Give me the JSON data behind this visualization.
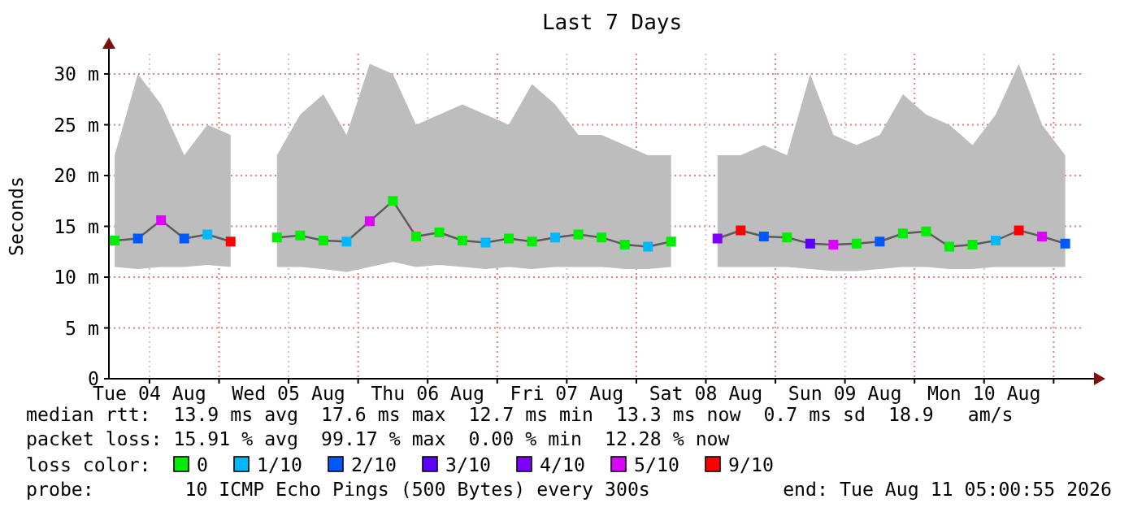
{
  "chart_data": {
    "type": "line",
    "title": "Last 7 Days",
    "ylabel": "Seconds",
    "xlim": [
      "2026-08-04T05:00",
      "2026-08-11T05:00"
    ],
    "xticks": [
      {
        "value": "2026-08-04T12:00",
        "label": "Tue 04 Aug"
      },
      {
        "value": "2026-08-05T00:00",
        "label": null
      },
      {
        "value": "2026-08-05T12:00",
        "label": "Wed 05 Aug"
      },
      {
        "value": "2026-08-06T00:00",
        "label": null
      },
      {
        "value": "2026-08-06T12:00",
        "label": "Thu 06 Aug"
      },
      {
        "value": "2026-08-07T00:00",
        "label": null
      },
      {
        "value": "2026-08-07T12:00",
        "label": "Fri 07 Aug"
      },
      {
        "value": "2026-08-08T00:00",
        "label": null
      },
      {
        "value": "2026-08-08T12:00",
        "label": "Sat 08 Aug"
      },
      {
        "value": "2026-08-09T00:00",
        "label": null
      },
      {
        "value": "2026-08-09T12:00",
        "label": "Sun 09 Aug"
      },
      {
        "value": "2026-08-10T00:00",
        "label": null
      },
      {
        "value": "2026-08-10T12:00",
        "label": "Mon 10 Aug"
      },
      {
        "value": "2026-08-11T00:00",
        "label": null
      }
    ],
    "ylim": [
      0,
      32
    ],
    "yticks": [
      0,
      {
        "value": 5,
        "label": "5 m"
      },
      {
        "value": 10,
        "label": "10 m"
      },
      {
        "value": 15,
        "label": "15 m"
      },
      {
        "value": 20,
        "label": "20 m"
      },
      {
        "value": 25,
        "label": "25 m"
      },
      {
        "value": 30,
        "label": "30 m"
      }
    ],
    "grid": true,
    "legend": "bottom",
    "legend_title": "loss color:",
    "marker": "square",
    "x": [
      "2026-08-04T06:00",
      "2026-08-04T10:00",
      "2026-08-04T14:00",
      "2026-08-04T18:00",
      "2026-08-04T22:00",
      "2026-08-05T02:00",
      "2026-08-05T06:00",
      "2026-08-05T10:00",
      "2026-08-05T14:00",
      "2026-08-05T18:00",
      "2026-08-05T22:00",
      "2026-08-06T02:00",
      "2026-08-06T06:00",
      "2026-08-06T10:00",
      "2026-08-06T14:00",
      "2026-08-06T18:00",
      "2026-08-06T22:00",
      "2026-08-07T02:00",
      "2026-08-07T06:00",
      "2026-08-07T10:00",
      "2026-08-07T14:00",
      "2026-08-07T18:00",
      "2026-08-07T22:00",
      "2026-08-08T02:00",
      "2026-08-08T06:00",
      "2026-08-08T10:00",
      "2026-08-08T14:00",
      "2026-08-08T18:00",
      "2026-08-08T22:00",
      "2026-08-09T02:00",
      "2026-08-09T06:00",
      "2026-08-09T10:00",
      "2026-08-09T14:00",
      "2026-08-09T18:00",
      "2026-08-09T22:00",
      "2026-08-10T02:00",
      "2026-08-10T06:00",
      "2026-08-10T10:00",
      "2026-08-10T14:00",
      "2026-08-10T18:00",
      "2026-08-10T22:00",
      "2026-08-11T02:00"
    ],
    "series": [
      {
        "color": "#5b5b5b",
        "marker": "none",
        "values": [
          13.6,
          13.8,
          15.6,
          13.8,
          14.2,
          13.5,
          null,
          13.9,
          14.1,
          13.6,
          13.5,
          15.5,
          17.5,
          14.0,
          14.4,
          13.6,
          13.4,
          13.8,
          13.5,
          13.9,
          14.2,
          13.9,
          13.2,
          13.0,
          13.5,
          null,
          13.8,
          14.6,
          14.0,
          13.9,
          13.3,
          13.2,
          13.3,
          13.5,
          14.3,
          14.5,
          13.0,
          13.2,
          13.6,
          14.6,
          14.0,
          13.3
        ],
        "lower": [
          11.0,
          10.8,
          11.0,
          11.0,
          11.2,
          11.0,
          null,
          11.0,
          11.0,
          10.8,
          10.5,
          11.0,
          11.5,
          11.0,
          11.2,
          11.0,
          10.8,
          11.0,
          10.8,
          11.0,
          11.0,
          11.0,
          10.8,
          10.8,
          11.0,
          null,
          11.0,
          11.0,
          11.0,
          11.0,
          10.8,
          10.6,
          10.6,
          10.8,
          11.0,
          11.0,
          10.8,
          10.8,
          11.0,
          11.0,
          11.0,
          11.0
        ],
        "upper": [
          22,
          30,
          27,
          22,
          25,
          24,
          null,
          22,
          26,
          28,
          24,
          31,
          30,
          25,
          26,
          27,
          26,
          25,
          29,
          27,
          24,
          24,
          23,
          22,
          22,
          null,
          22,
          22,
          23,
          22,
          30,
          24,
          23,
          24,
          28,
          26,
          25,
          23,
          26,
          31,
          25,
          22
        ]
      },
      {
        "type": "scatter",
        "name": "0",
        "color": "#00ee00",
        "x": [
          "2026-08-04T06:00",
          "2026-08-05T10:00",
          "2026-08-05T14:00",
          "2026-08-05T18:00",
          "2026-08-06T06:00",
          "2026-08-06T10:00",
          "2026-08-06T14:00",
          "2026-08-06T18:00",
          "2026-08-07T02:00",
          "2026-08-07T06:00",
          "2026-08-07T14:00",
          "2026-08-07T18:00",
          "2026-08-07T22:00",
          "2026-08-08T06:00",
          "2026-08-09T02:00",
          "2026-08-09T14:00",
          "2026-08-09T22:00",
          "2026-08-10T02:00",
          "2026-08-10T06:00",
          "2026-08-10T10:00"
        ],
        "values": [
          13.6,
          13.9,
          14.1,
          13.6,
          17.5,
          14.0,
          14.4,
          13.6,
          13.8,
          13.5,
          14.2,
          13.9,
          13.2,
          13.5,
          13.9,
          13.3,
          14.3,
          14.5,
          13.0,
          13.2
        ]
      },
      {
        "type": "scatter",
        "name": "1/10",
        "color": "#00b8ff",
        "x": [
          "2026-08-04T22:00",
          "2026-08-05T22:00",
          "2026-08-06T22:00",
          "2026-08-07T10:00",
          "2026-08-08T02:00",
          "2026-08-10T14:00"
        ],
        "values": [
          14.2,
          13.5,
          13.4,
          13.9,
          13.0,
          13.6
        ]
      },
      {
        "type": "scatter",
        "name": "2/10",
        "color": "#0059ff",
        "x": [
          "2026-08-04T10:00",
          "2026-08-04T18:00",
          "2026-08-08T22:00",
          "2026-08-09T18:00",
          "2026-08-11T02:00"
        ],
        "values": [
          13.8,
          13.8,
          14.0,
          13.5,
          13.3
        ]
      },
      {
        "type": "scatter",
        "name": "3/10",
        "color": "#5e00ff",
        "x": [
          "2026-08-09T06:00"
        ],
        "values": [
          13.3
        ]
      },
      {
        "type": "scatter",
        "name": "4/10",
        "color": "#7e00ff",
        "x": [
          "2026-08-08T14:00"
        ],
        "values": [
          13.8
        ]
      },
      {
        "type": "scatter",
        "name": "5/10",
        "color": "#dd00ff",
        "x": [
          "2026-08-04T14:00",
          "2026-08-06T02:00",
          "2026-08-09T10:00",
          "2026-08-10T22:00"
        ],
        "values": [
          15.6,
          15.5,
          13.2,
          14.0
        ]
      },
      {
        "type": "scatter",
        "name": "9/10",
        "color": "#ff0000",
        "x": [
          "2026-08-05T02:00",
          "2026-08-08T18:00",
          "2026-08-10T18:00"
        ],
        "values": [
          13.5,
          14.6,
          14.6
        ]
      }
    ],
    "annotations": [
      "median rtt:  13.9 ms avg  17.6 ms max  12.7 ms min  13.3 ms now  0.7 ms sd  18.9   am/s",
      "packet loss: 15.91 % avg  99.17 % max  0.00 % min  12.28 % now",
      "probe:        10 ICMP Echo Pings (500 Bytes) every 300s",
      "end: Tue Aug 11 05:00:55 2026"
    ]
  }
}
